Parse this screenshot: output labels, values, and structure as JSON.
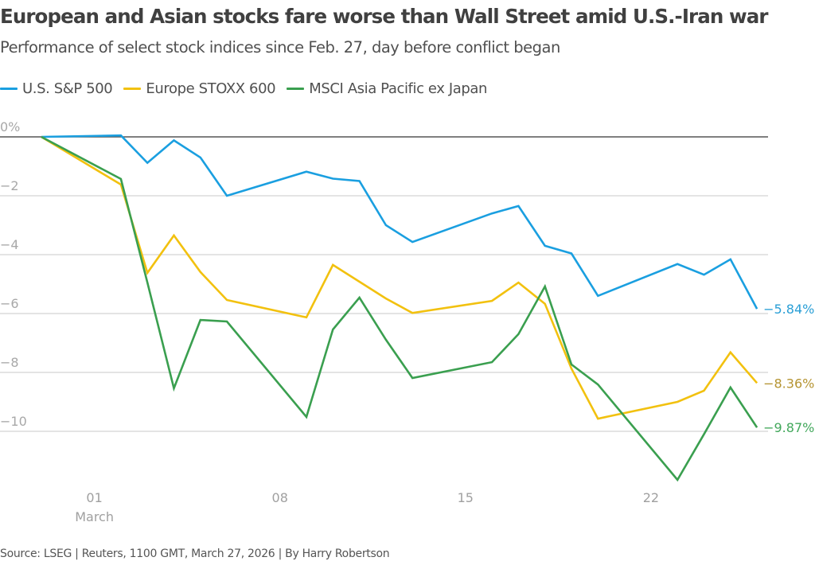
{
  "title": "European and Asian stocks fare worse than Wall Street amid U.S.-Iran war",
  "subtitle": "Performance of select stock indices since Feb. 27, day before conflict began",
  "source": "Source: LSEG | Reuters, 1100 GMT, March 27, 2026 | By Harry Robertson",
  "chart_data": {
    "type": "line",
    "title": "European and Asian stocks fare worse than Wall Street amid U.S.-Iran war",
    "subtitle": "Performance of select stock indices since Feb. 27, day before conflict began",
    "xlabel": "",
    "ylabel": "",
    "x": [
      "Feb 27",
      "Mar 02",
      "Mar 03",
      "Mar 04",
      "Mar 05",
      "Mar 06",
      "Mar 09",
      "Mar 10",
      "Mar 11",
      "Mar 12",
      "Mar 13",
      "Mar 16",
      "Mar 17",
      "Mar 18",
      "Mar 19",
      "Mar 20",
      "Mar 23",
      "Mar 24",
      "Mar 25",
      "Mar 26"
    ],
    "x_day_offset": [
      0,
      3,
      4,
      5,
      6,
      7,
      10,
      11,
      12,
      13,
      14,
      17,
      18,
      19,
      20,
      21,
      24,
      25,
      26,
      27
    ],
    "series": [
      {
        "name": "U.S. S&P 500",
        "color": "#1a9fe0",
        "label_color": "#2a9fd6",
        "end_label": "−5.84%",
        "values": [
          0,
          0.05,
          -0.88,
          -0.12,
          -0.7,
          -2.0,
          -1.18,
          -1.42,
          -1.5,
          -3.0,
          -3.57,
          -2.6,
          -2.35,
          -3.7,
          -3.96,
          -5.4,
          -4.32,
          -4.68,
          -4.16,
          -5.84
        ]
      },
      {
        "name": "Europe STOXX 600",
        "color": "#f2c10f",
        "label_color": "#b59432",
        "end_label": "−8.36%",
        "values": [
          0,
          -1.62,
          -4.62,
          -3.35,
          -4.59,
          -5.54,
          -6.13,
          -4.35,
          -4.92,
          -5.49,
          -5.98,
          -5.57,
          -4.95,
          -5.67,
          -7.87,
          -9.57,
          -9.0,
          -8.62,
          -7.32,
          -8.36
        ]
      },
      {
        "name": "MSCI Asia Pacific ex Japan",
        "color": "#3a9f4f",
        "label_color": "#43a85c",
        "end_label": "−9.87%",
        "values": [
          0,
          -1.43,
          -4.95,
          -8.54,
          -6.22,
          -6.27,
          -9.51,
          -6.54,
          -5.46,
          -6.89,
          -8.19,
          -7.65,
          -6.7,
          -5.08,
          -7.73,
          -8.41,
          -11.65,
          -10.1,
          -8.51,
          -9.87
        ]
      }
    ],
    "yticks": [
      0,
      -2,
      -4,
      -6,
      -8,
      -10
    ],
    "ytick_labels": [
      "0%",
      "−2",
      "−4",
      "−6",
      "−8",
      "−10"
    ],
    "xticks": [
      {
        "day_offset": 2,
        "label": "01",
        "sublabel": "March"
      },
      {
        "day_offset": 9,
        "label": "08",
        "sublabel": ""
      },
      {
        "day_offset": 16,
        "label": "15",
        "sublabel": ""
      },
      {
        "day_offset": 23,
        "label": "22",
        "sublabel": ""
      }
    ],
    "ylim": [
      -12,
      0.5
    ],
    "grid": true,
    "zero_line": true,
    "legend": "top-left"
  }
}
